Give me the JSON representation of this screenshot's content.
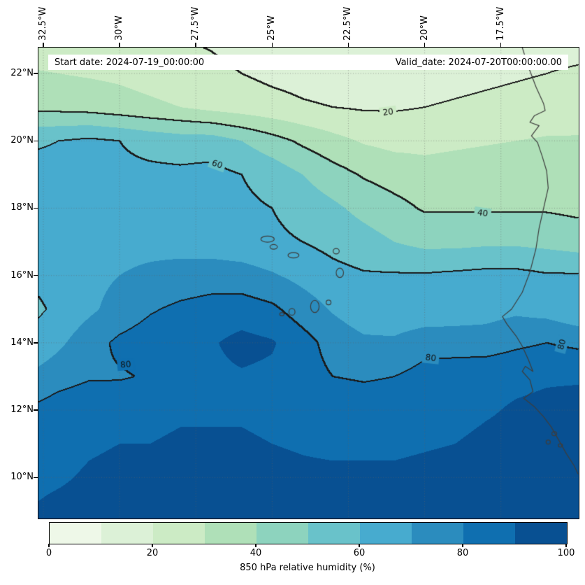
{
  "figure": {
    "header": {
      "start_label": "Start date: 2024-07-19_00:00:00",
      "valid_label": "Valid_date: 2024-07-20T00:00:00.00"
    },
    "colors": {
      "contour_line": "#1a1a1a",
      "coastline": "#3d3d3d",
      "gridline": "rgba(100,100,100,0.55)",
      "background": "#ffffff"
    }
  },
  "axes": {
    "x_ticks": [
      "32.5°W",
      "30°W",
      "27.5°W",
      "25°W",
      "22.5°W",
      "20°W",
      "17.5°W"
    ],
    "x_tick_lons": [
      -32.5,
      -30,
      -27.5,
      -25,
      -22.5,
      -20,
      -17.5
    ],
    "y_ticks": [
      "22°N",
      "20°N",
      "18°N",
      "16°N",
      "14°N",
      "12°N",
      "10°N"
    ],
    "y_tick_lats": [
      22,
      20,
      18,
      16,
      14,
      12,
      10
    ],
    "x_range": [
      -32.66,
      -14.95
    ],
    "y_range": [
      8.78,
      22.77
    ],
    "grid_on": true
  },
  "chart_data": {
    "type": "heatmap",
    "title": "",
    "field_name": "850 hPa relative humidity (%)",
    "contour_levels": [
      20,
      40,
      60,
      80
    ],
    "colorbar": {
      "label": "850 hPa relative humidity (%)",
      "ticks": [
        0,
        20,
        40,
        60,
        80,
        100
      ],
      "levels": [
        0,
        10,
        20,
        30,
        40,
        50,
        60,
        70,
        80,
        90,
        100
      ],
      "colors": [
        "#eef8e8",
        "#dcf1d7",
        "#ccebc5",
        "#afe0b8",
        "#8dd3be",
        "#69c2ca",
        "#47abcf",
        "#2b8cbe",
        "#0f6fb0",
        "#085092"
      ]
    },
    "grid": {
      "lons": [
        -33,
        -32,
        -31,
        -30,
        -29,
        -28,
        -27,
        -26,
        -25,
        -24,
        -23,
        -22,
        -21,
        -20,
        -19,
        -18,
        -17,
        -16,
        -15,
        -14
      ],
      "lats": [
        23,
        22,
        21,
        20,
        19,
        18,
        17,
        16,
        15,
        14,
        13,
        12,
        11,
        10,
        9,
        8
      ],
      "values": [
        [
          24,
          24,
          23,
          22,
          21,
          20,
          19,
          17,
          15,
          14,
          13,
          12,
          12,
          13,
          14,
          15,
          16,
          17,
          17,
          17
        ],
        [
          31,
          30,
          29,
          28,
          26,
          24,
          22,
          20,
          18,
          17,
          16,
          15,
          15,
          16,
          17,
          18,
          19,
          20,
          21,
          21
        ],
        [
          38,
          37,
          36,
          34,
          32,
          30,
          27,
          25,
          23,
          21,
          20,
          19,
          19,
          20,
          21,
          22,
          23,
          24,
          25,
          25
        ],
        [
          58,
          60,
          62,
          60,
          57,
          55,
          55,
          50,
          44,
          38,
          33,
          29,
          27,
          27,
          28,
          29,
          30,
          31,
          31,
          31
        ],
        [
          64,
          64,
          63,
          62,
          62,
          62,
          63,
          60,
          56,
          50,
          44,
          39,
          36,
          34,
          35,
          36,
          37,
          37,
          37,
          37
        ],
        [
          67,
          67,
          66,
          66,
          65,
          64,
          63,
          62,
          60,
          56,
          52,
          47,
          43,
          39,
          39,
          39,
          39,
          39,
          38,
          38
        ],
        [
          68,
          68,
          68,
          67,
          67,
          66,
          65,
          64,
          62,
          60,
          57,
          54,
          50,
          47,
          47,
          48,
          48,
          47,
          45,
          45
        ],
        [
          61,
          64,
          67,
          70,
          72,
          74,
          75,
          74,
          71,
          67,
          63,
          61,
          61,
          61,
          62,
          63,
          63,
          61,
          61,
          61
        ],
        [
          57,
          62,
          68,
          74,
          79,
          82,
          84,
          85,
          82,
          75,
          69,
          64,
          62,
          62,
          64,
          66,
          68,
          66,
          62,
          62
        ],
        [
          61,
          68,
          76,
          82,
          85,
          86,
          89,
          93,
          91,
          84,
          76,
          72,
          72,
          77,
          76,
          75,
          78,
          80,
          78,
          78
        ],
        [
          71,
          76,
          79,
          79,
          81,
          85,
          88,
          89,
          88,
          84,
          80,
          79,
          80,
          83,
          85,
          87,
          88,
          89,
          89,
          89
        ],
        [
          81,
          85,
          87,
          88,
          88,
          89,
          89,
          89,
          88,
          87,
          86,
          85,
          85,
          86,
          87,
          89,
          91,
          92,
          93,
          93
        ],
        [
          85,
          87,
          89,
          90,
          90,
          91,
          91,
          91,
          90,
          89,
          88,
          88,
          88,
          89,
          90,
          92,
          93,
          94,
          94,
          94
        ],
        [
          88,
          89,
          91,
          92,
          93,
          94,
          94,
          94,
          93,
          92,
          92,
          92,
          92,
          93,
          94,
          95,
          95,
          96,
          96,
          96
        ],
        [
          90,
          92,
          93,
          94,
          95,
          96,
          96,
          96,
          95,
          94,
          94,
          94,
          94,
          95,
          96,
          97,
          97,
          97,
          97,
          97
        ],
        [
          90,
          92,
          93,
          94,
          95,
          96,
          96,
          96,
          95,
          94,
          94,
          94,
          94,
          95,
          96,
          97,
          97,
          97,
          97,
          97
        ]
      ]
    },
    "contour_labels": [
      {
        "text": "20",
        "lon": -21.2,
        "lat": 20.85,
        "angle": -8
      },
      {
        "text": "60",
        "lon": -26.8,
        "lat": 19.3,
        "angle": 20
      },
      {
        "text": "40",
        "lon": -18.1,
        "lat": 17.85,
        "angle": 8
      },
      {
        "text": "80",
        "lon": -29.8,
        "lat": 13.35,
        "angle": -5
      },
      {
        "text": "80",
        "lon": -19.8,
        "lat": 13.55,
        "angle": 6
      },
      {
        "text": "80",
        "lon": -15.5,
        "lat": 13.95,
        "angle": -75
      }
    ]
  },
  "map": {
    "coastline": [
      [
        -16.8,
        22.77
      ],
      [
        -16.6,
        22.2
      ],
      [
        -16.35,
        21.6
      ],
      [
        -16.1,
        21.1
      ],
      [
        -16.05,
        20.9
      ],
      [
        -16.4,
        20.75
      ],
      [
        -16.55,
        20.55
      ],
      [
        -16.25,
        20.45
      ],
      [
        -16.5,
        20.15
      ],
      [
        -16.3,
        19.95
      ],
      [
        -16.15,
        19.55
      ],
      [
        -16.0,
        19.1
      ],
      [
        -15.95,
        18.6
      ],
      [
        -16.1,
        18.0
      ],
      [
        -16.25,
        17.4
      ],
      [
        -16.35,
        16.8
      ],
      [
        -16.55,
        16.1
      ],
      [
        -16.8,
        15.5
      ],
      [
        -17.15,
        15.0
      ],
      [
        -17.45,
        14.78
      ],
      [
        -17.3,
        14.55
      ],
      [
        -17.0,
        14.2
      ],
      [
        -16.8,
        13.9
      ],
      [
        -16.6,
        13.5
      ],
      [
        -16.45,
        13.15
      ],
      [
        -16.7,
        13.3
      ],
      [
        -16.8,
        13.15
      ],
      [
        -16.55,
        12.9
      ],
      [
        -16.45,
        12.55
      ],
      [
        -16.75,
        12.35
      ],
      [
        -16.4,
        12.1
      ],
      [
        -16.1,
        11.8
      ],
      [
        -15.85,
        11.5
      ],
      [
        -15.6,
        11.1
      ],
      [
        -15.35,
        10.7
      ],
      [
        -15.1,
        10.35
      ],
      [
        -14.97,
        10.1
      ]
    ],
    "islands": [
      {
        "lon": -25.15,
        "lat": 17.08,
        "rx": 0.22,
        "ry": 0.09
      },
      {
        "lon": -24.95,
        "lat": 16.85,
        "rx": 0.12,
        "ry": 0.07
      },
      {
        "lon": -24.3,
        "lat": 16.6,
        "rx": 0.18,
        "ry": 0.08
      },
      {
        "lon": -22.9,
        "lat": 16.72,
        "rx": 0.1,
        "ry": 0.08
      },
      {
        "lon": -22.78,
        "lat": 16.08,
        "rx": 0.12,
        "ry": 0.14
      },
      {
        "lon": -23.6,
        "lat": 15.08,
        "rx": 0.14,
        "ry": 0.18
      },
      {
        "lon": -24.35,
        "lat": 14.92,
        "rx": 0.1,
        "ry": 0.1
      },
      {
        "lon": -24.68,
        "lat": 14.85,
        "rx": 0.07,
        "ry": 0.05
      },
      {
        "lon": -23.15,
        "lat": 15.2,
        "rx": 0.08,
        "ry": 0.07
      },
      {
        "lon": -15.75,
        "lat": 11.3,
        "rx": 0.08,
        "ry": 0.06
      },
      {
        "lon": -15.95,
        "lat": 11.05,
        "rx": 0.07,
        "ry": 0.06
      },
      {
        "lon": -15.55,
        "lat": 10.95,
        "rx": 0.07,
        "ry": 0.05
      }
    ]
  }
}
